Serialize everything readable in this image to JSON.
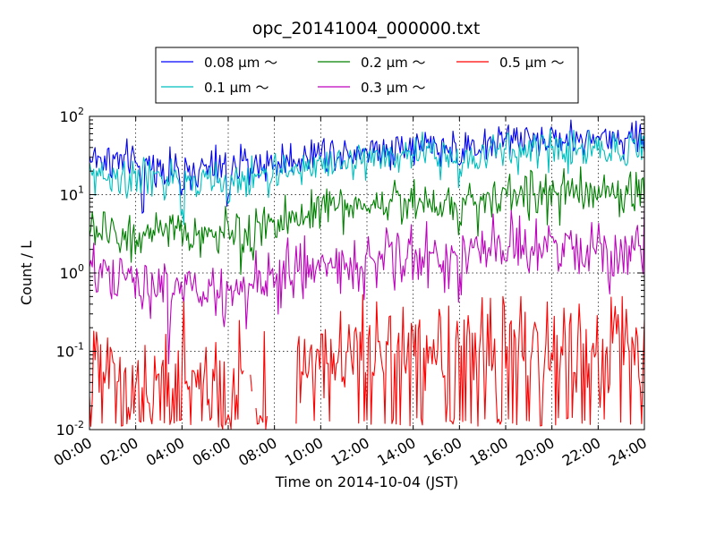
{
  "chart_data": {
    "type": "line",
    "title": "opc_20141004_000000.txt",
    "xlabel": "Time on 2014-10-04 (JST)",
    "ylabel": "Count / L",
    "x_ticks": [
      "00:00",
      "02:00",
      "04:00",
      "06:00",
      "08:00",
      "10:00",
      "12:00",
      "14:00",
      "16:00",
      "18:00",
      "20:00",
      "22:00",
      "24:00"
    ],
    "x_range_hours": [
      0,
      24
    ],
    "y_scale": "log",
    "ylim": [
      0.01,
      100
    ],
    "y_ticks": [
      {
        "value": 0.01,
        "base": "10",
        "exp": "-2"
      },
      {
        "value": 0.1,
        "base": "10",
        "exp": "-1"
      },
      {
        "value": 1,
        "base": "10",
        "exp": "0"
      },
      {
        "value": 10,
        "base": "10",
        "exp": "1"
      },
      {
        "value": 100,
        "base": "10",
        "exp": "2"
      }
    ],
    "grid": true,
    "legend_position": "top-center, above plot",
    "series": [
      {
        "name": "0.08 μm ～",
        "label_num": "0.08",
        "color": "#0000ff",
        "anchors_hours": [
          0,
          2,
          4,
          6,
          8,
          10,
          12,
          14,
          16,
          18,
          20,
          22,
          24
        ],
        "anchors_values": [
          30,
          25,
          20,
          22,
          25,
          35,
          38,
          42,
          40,
          50,
          52,
          52,
          55
        ],
        "dips": [
          [
            2.3,
            0.4
          ],
          [
            4.0,
            0.45
          ],
          [
            6.0,
            0.5
          ],
          [
            16.0,
            0.55
          ]
        ],
        "noise": 0.17
      },
      {
        "name": "0.1 μm ～",
        "label_num": "0.1",
        "color": "#00bfbf",
        "anchors_hours": [
          0,
          2,
          4,
          6,
          8,
          10,
          12,
          14,
          16,
          18,
          20,
          22,
          24
        ],
        "anchors_values": [
          18,
          17,
          14,
          15,
          18,
          25,
          28,
          32,
          30,
          35,
          38,
          38,
          40
        ],
        "dips": [
          [
            1.6,
            0.55
          ],
          [
            4.0,
            0.45
          ],
          [
            6.0,
            0.5
          ],
          [
            16.0,
            0.55
          ]
        ],
        "noise": 0.17
      },
      {
        "name": "0.2 μm ～",
        "label_num": "0.2",
        "color": "#008000",
        "anchors_hours": [
          0,
          2,
          4,
          6,
          8,
          10,
          12,
          14,
          16,
          18,
          20,
          22,
          24
        ],
        "anchors_values": [
          3.5,
          3,
          3,
          3.2,
          4,
          7,
          7.5,
          8.5,
          8,
          10,
          10,
          10,
          11
        ],
        "dips": [
          [
            6.6,
            0.5
          ],
          [
            16.0,
            0.55
          ]
        ],
        "noise": 0.2
      },
      {
        "name": "0.3 μm ～",
        "label_num": "0.3",
        "color": "#bf00bf",
        "anchors_hours": [
          0,
          2,
          4,
          6,
          8,
          10,
          12,
          14,
          16,
          18,
          20,
          22,
          24
        ],
        "anchors_values": [
          0.9,
          0.8,
          0.6,
          0.6,
          0.8,
          1.3,
          1.4,
          1.6,
          1.6,
          2,
          2,
          2,
          2
        ],
        "dips": [
          [
            2.3,
            0.35
          ],
          [
            3.5,
            0.4
          ],
          [
            5.8,
            0.5
          ],
          [
            16.0,
            0.45
          ]
        ],
        "noise": 0.28
      },
      {
        "name": "0.5 μm ～",
        "label_num": "0.5",
        "color": "#ff0000",
        "anchors_hours": [
          0,
          2,
          4,
          6,
          8,
          10,
          12,
          14,
          16,
          18,
          20,
          22,
          24
        ],
        "anchors_values": [
          0.06,
          0.05,
          0.05,
          0.05,
          0.06,
          0.08,
          0.1,
          0.12,
          0.12,
          0.13,
          0.12,
          0.12,
          0.13
        ],
        "noise": 0.45,
        "floor": 0.012,
        "gaps_hours": [
          [
            6.7,
            7.3
          ],
          [
            7.7,
            8.9
          ]
        ]
      }
    ]
  }
}
